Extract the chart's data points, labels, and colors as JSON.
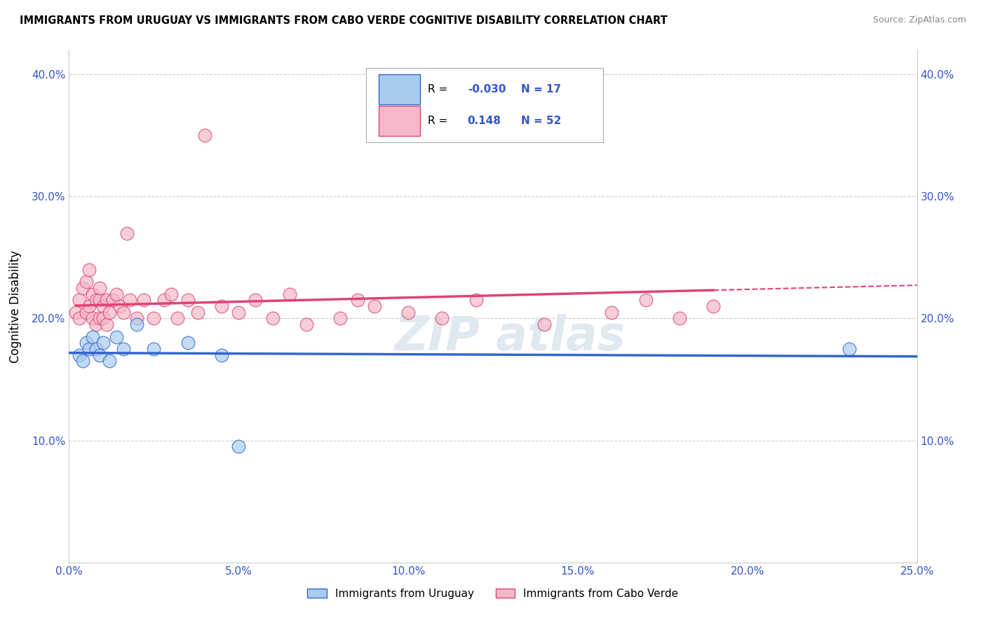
{
  "title": "IMMIGRANTS FROM URUGUAY VS IMMIGRANTS FROM CABO VERDE COGNITIVE DISABILITY CORRELATION CHART",
  "source": "Source: ZipAtlas.com",
  "ylabel": "Cognitive Disability",
  "legend_labels": [
    "Immigrants from Uruguay",
    "Immigrants from Cabo Verde"
  ],
  "r_uruguay": -0.03,
  "n_uruguay": 17,
  "r_caboverde": 0.148,
  "n_caboverde": 52,
  "color_uruguay": "#aaccee",
  "color_caboverde": "#f5b8c8",
  "trendline_uruguay": "#3366cc",
  "trendline_caboverde": "#dd4477",
  "xlim": [
    0.0,
    0.25
  ],
  "ylim": [
    0.0,
    0.42
  ],
  "xticks": [
    0.0,
    0.05,
    0.1,
    0.15,
    0.2,
    0.25
  ],
  "yticks": [
    0.0,
    0.1,
    0.2,
    0.3,
    0.4
  ],
  "ytick_labels": [
    "",
    "10.0%",
    "20.0%",
    "30.0%",
    "40.0%"
  ],
  "xtick_labels": [
    "0.0%",
    "5.0%",
    "10.0%",
    "15.0%",
    "20.0%",
    "25.0%"
  ],
  "background_color": "#ffffff",
  "grid_color": "#cccccc",
  "uruguay_x": [
    0.003,
    0.004,
    0.005,
    0.006,
    0.007,
    0.008,
    0.009,
    0.01,
    0.012,
    0.014,
    0.016,
    0.02,
    0.025,
    0.035,
    0.045,
    0.05,
    0.23
  ],
  "uruguay_y": [
    0.17,
    0.165,
    0.18,
    0.175,
    0.185,
    0.175,
    0.17,
    0.18,
    0.165,
    0.185,
    0.175,
    0.195,
    0.175,
    0.18,
    0.17,
    0.095,
    0.175
  ],
  "caboverde_x": [
    0.002,
    0.003,
    0.003,
    0.004,
    0.005,
    0.005,
    0.006,
    0.006,
    0.007,
    0.007,
    0.008,
    0.008,
    0.009,
    0.009,
    0.009,
    0.01,
    0.01,
    0.011,
    0.011,
    0.012,
    0.013,
    0.014,
    0.015,
    0.016,
    0.017,
    0.018,
    0.02,
    0.022,
    0.025,
    0.028,
    0.03,
    0.032,
    0.035,
    0.038,
    0.04,
    0.045,
    0.05,
    0.055,
    0.06,
    0.065,
    0.07,
    0.08,
    0.085,
    0.09,
    0.1,
    0.11,
    0.12,
    0.14,
    0.16,
    0.17,
    0.18,
    0.19
  ],
  "caboverde_y": [
    0.205,
    0.215,
    0.2,
    0.225,
    0.23,
    0.205,
    0.24,
    0.21,
    0.22,
    0.2,
    0.215,
    0.195,
    0.2,
    0.215,
    0.225,
    0.21,
    0.2,
    0.215,
    0.195,
    0.205,
    0.215,
    0.22,
    0.21,
    0.205,
    0.27,
    0.215,
    0.2,
    0.215,
    0.2,
    0.215,
    0.22,
    0.2,
    0.215,
    0.205,
    0.35,
    0.21,
    0.205,
    0.215,
    0.2,
    0.22,
    0.195,
    0.2,
    0.215,
    0.21,
    0.205,
    0.2,
    0.215,
    0.195,
    0.205,
    0.215,
    0.2,
    0.21
  ]
}
